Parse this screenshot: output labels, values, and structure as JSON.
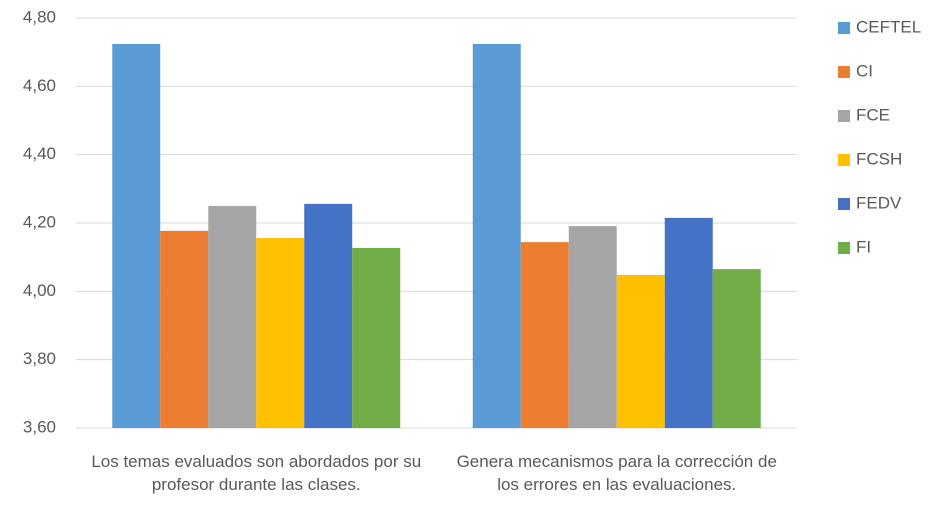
{
  "chart_data": {
    "type": "bar",
    "categories": [
      "Los temas evaluados son abordados por su profesor durante las clases.",
      "Genera mecanismos para la corrección de los errores en las evaluaciones."
    ],
    "series": [
      {
        "name": "CEFTEL",
        "color": "#5b9bd5",
        "values": [
          4.724,
          4.724
        ]
      },
      {
        "name": "CI",
        "color": "#ed7d31",
        "values": [
          4.177,
          4.144
        ]
      },
      {
        "name": "FCE",
        "color": "#a5a5a5",
        "values": [
          4.25,
          4.191
        ]
      },
      {
        "name": "FCSH",
        "color": "#ffc000",
        "values": [
          4.156,
          4.048
        ]
      },
      {
        "name": "FEDV",
        "color": "#4472c4",
        "values": [
          4.256,
          4.215
        ]
      },
      {
        "name": "FI",
        "color": "#70ad47",
        "values": [
          4.127,
          4.065
        ]
      }
    ],
    "ylim": [
      3.6,
      4.8
    ],
    "yticks": [
      {
        "value": 3.6,
        "label": "3,60"
      },
      {
        "value": 3.8,
        "label": "3,80"
      },
      {
        "value": 4.0,
        "label": "4,00"
      },
      {
        "value": 4.2,
        "label": "4,20"
      },
      {
        "value": 4.4,
        "label": "4,40"
      },
      {
        "value": 4.6,
        "label": "4,60"
      },
      {
        "value": 4.8,
        "label": "4,80"
      }
    ],
    "grid": true,
    "legend": "right"
  }
}
